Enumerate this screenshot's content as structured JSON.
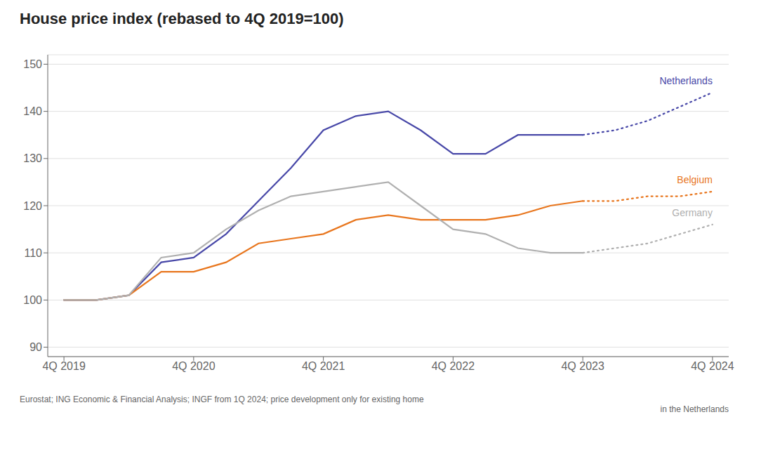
{
  "chart_data": {
    "type": "line",
    "title": "House price index (rebased to 4Q 2019=100)",
    "annotations": [
      "Eurostat; ING Economic & Financial Analysis; INGF from 1Q 2024; price development only for existing home",
      "in the Netherlands"
    ],
    "x": [
      0,
      1,
      2,
      3,
      4,
      5,
      6,
      7,
      8,
      9,
      10,
      11,
      12,
      13,
      14,
      15,
      16,
      17,
      18,
      19,
      20
    ],
    "xlim": [
      -0.5,
      20.5
    ],
    "xticks": [
      {
        "value": 0,
        "label": "4Q 2019"
      },
      {
        "value": 4,
        "label": "4Q 2020"
      },
      {
        "value": 8,
        "label": "4Q 2021"
      },
      {
        "value": 12,
        "label": "4Q 2022"
      },
      {
        "value": 16,
        "label": "4Q 2023"
      },
      {
        "value": 20,
        "label": "4Q 2024"
      }
    ],
    "ylim": [
      88,
      152
    ],
    "yticks": [
      90,
      100,
      110,
      120,
      130,
      140,
      150
    ],
    "grid": true,
    "series": [
      {
        "name": "Netherlands",
        "color": "#4848a8",
        "line_style": "solid",
        "values": [
          100,
          100,
          101,
          108,
          109,
          114,
          121,
          128,
          136,
          139,
          140,
          136,
          131,
          131,
          135,
          135,
          135,
          null,
          null,
          null,
          null
        ]
      },
      {
        "name": "Netherlands",
        "color": "#4848a8",
        "line_style": "dotted",
        "values": [
          null,
          null,
          null,
          null,
          null,
          null,
          null,
          null,
          null,
          null,
          null,
          null,
          null,
          null,
          null,
          null,
          135,
          136,
          138,
          141,
          144
        ]
      },
      {
        "name": "Belgium",
        "color": "#e8761e",
        "line_style": "solid",
        "values": [
          100,
          100,
          101,
          106,
          106,
          108,
          112,
          113,
          114,
          117,
          118,
          117,
          117,
          117,
          118,
          120,
          121,
          null,
          null,
          null,
          null
        ]
      },
      {
        "name": "Belgium",
        "color": "#e8761e",
        "line_style": "dotted",
        "values": [
          null,
          null,
          null,
          null,
          null,
          null,
          null,
          null,
          null,
          null,
          null,
          null,
          null,
          null,
          null,
          null,
          121,
          121,
          122,
          122,
          123
        ]
      },
      {
        "name": "Germany",
        "color": "#b0b0b0",
        "line_style": "solid",
        "values": [
          100,
          100,
          101,
          109,
          110,
          115,
          119,
          122,
          123,
          124,
          125,
          120,
          115,
          114,
          111,
          110,
          110,
          null,
          null,
          null,
          null
        ]
      },
      {
        "name": "Germany",
        "color": "#b0b0b0",
        "line_style": "dotted",
        "values": [
          null,
          null,
          null,
          null,
          null,
          null,
          null,
          null,
          null,
          null,
          null,
          null,
          null,
          null,
          null,
          null,
          110,
          111,
          112,
          114,
          116
        ]
      }
    ]
  }
}
